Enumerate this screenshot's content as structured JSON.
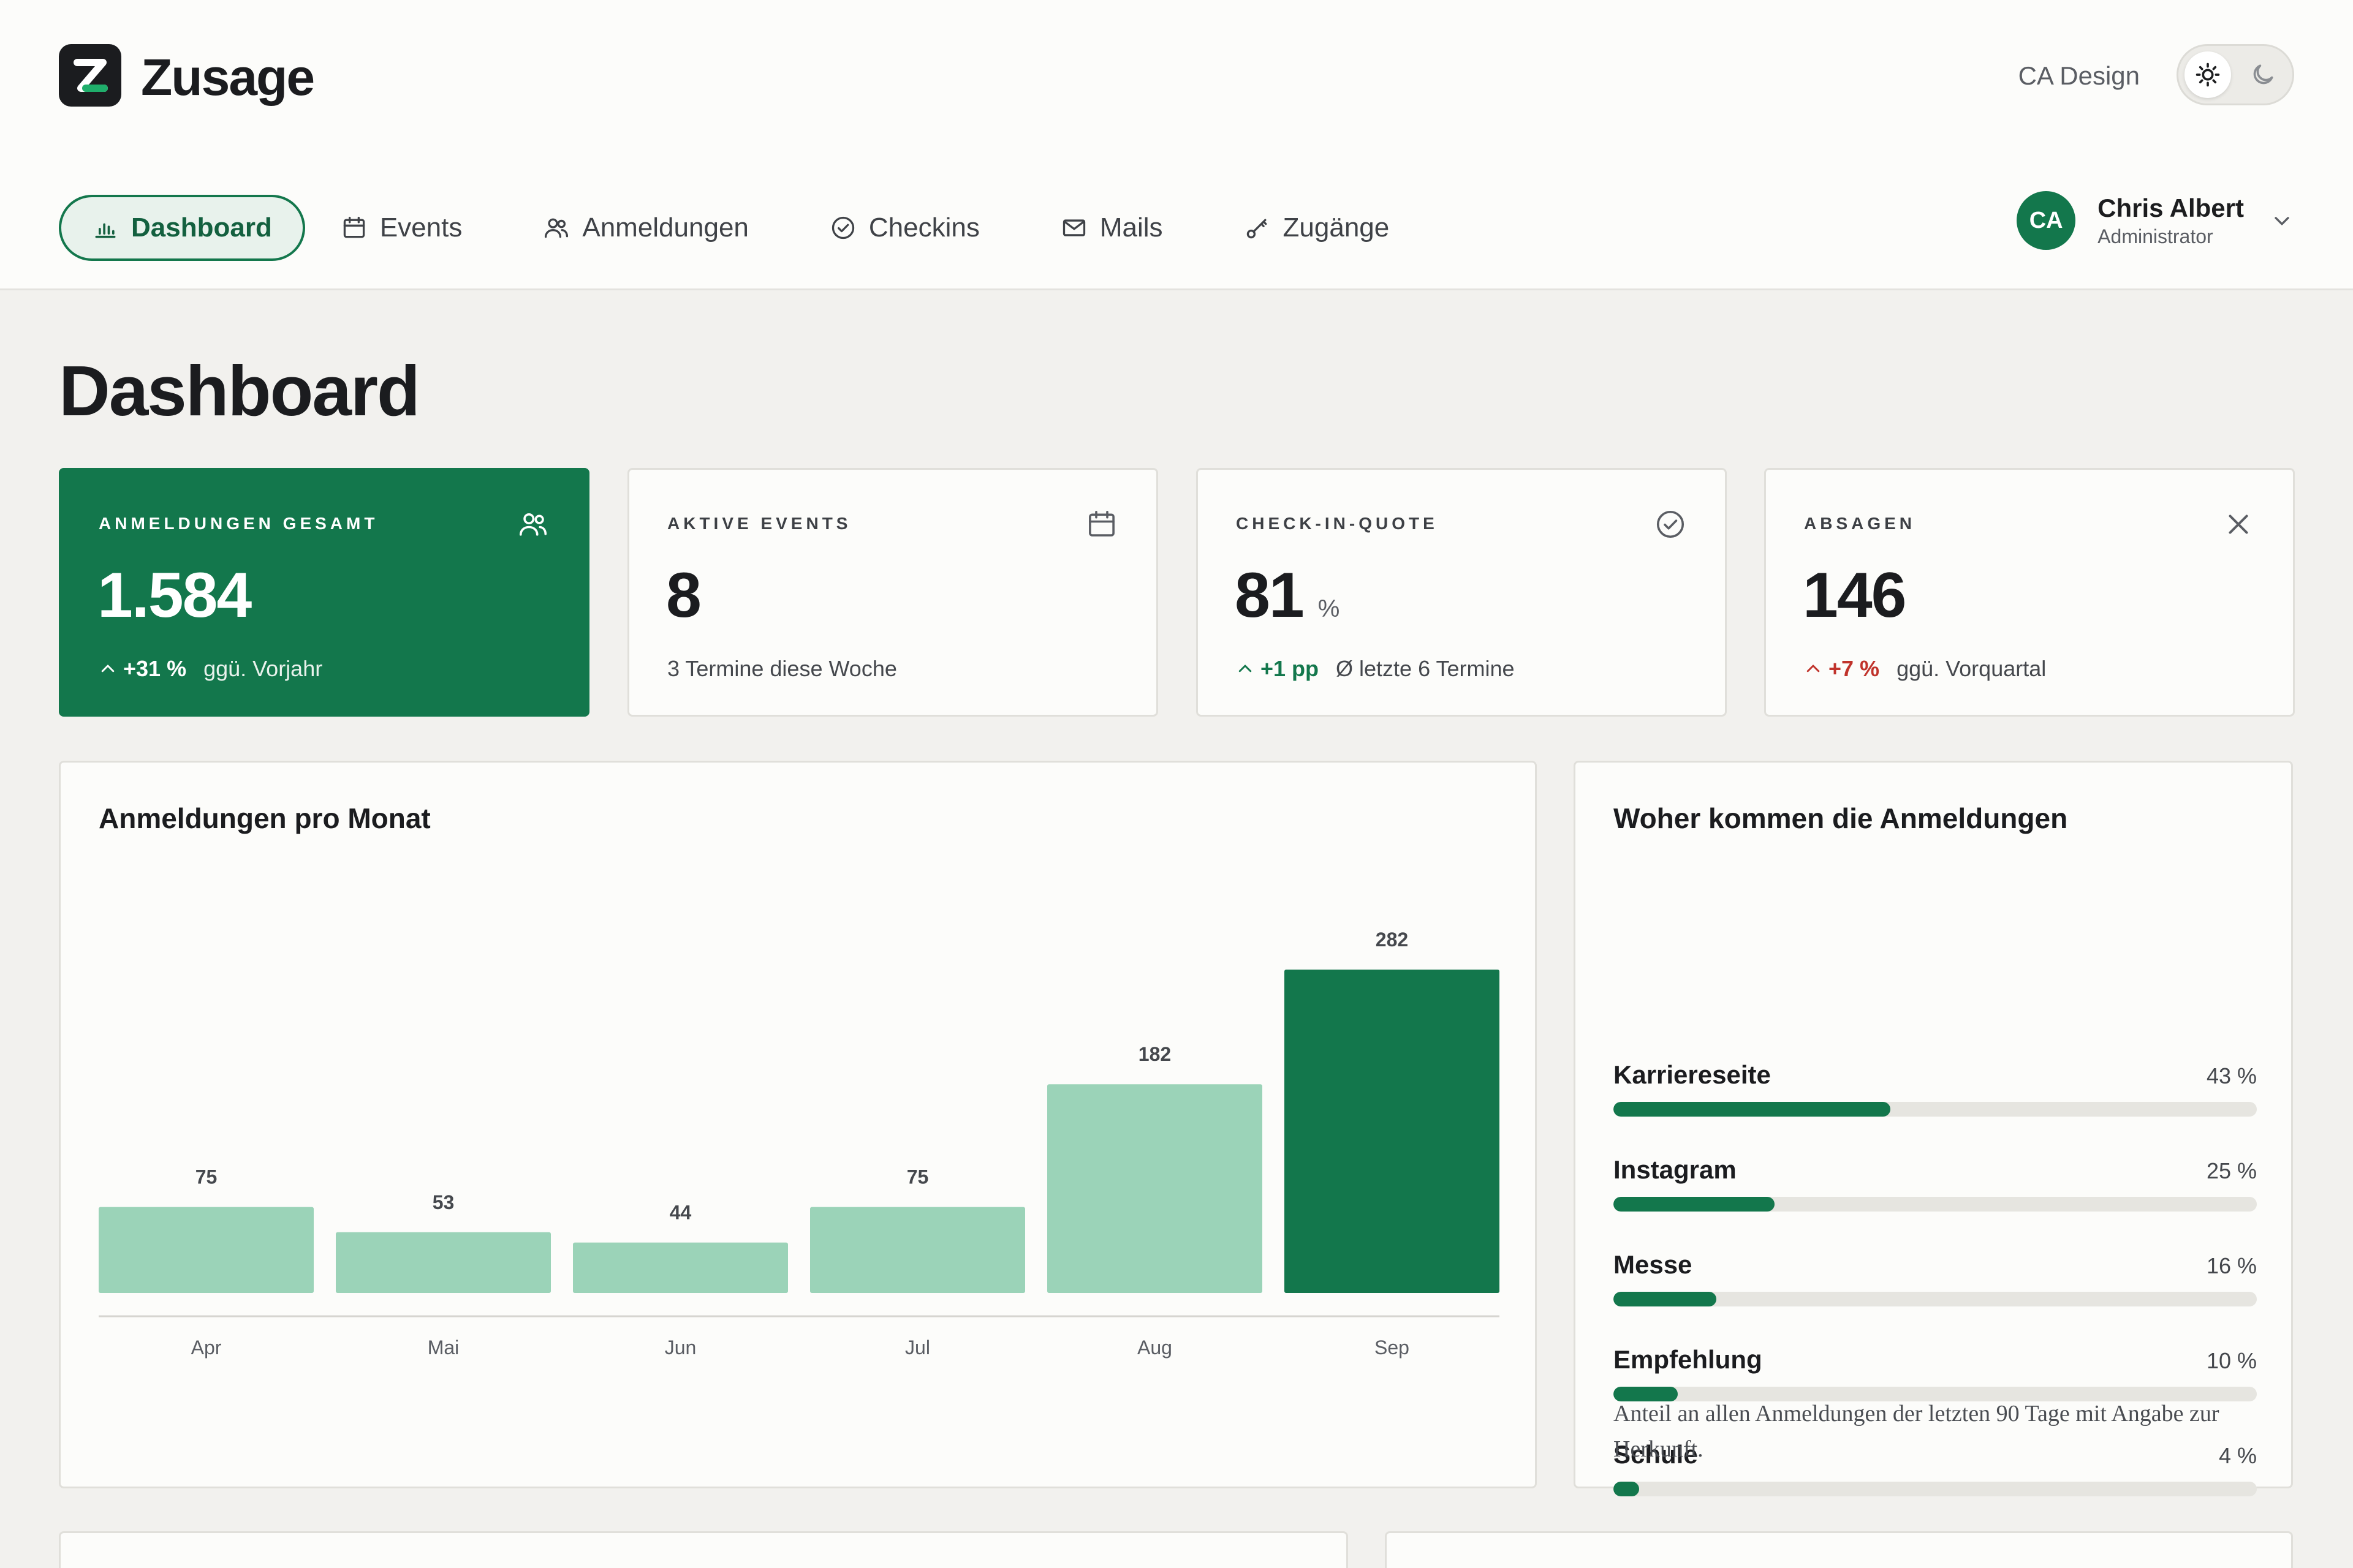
{
  "app": {
    "name": "Zusage",
    "brand_label": "CA Design",
    "theme_options": [
      "light",
      "dark"
    ],
    "active_theme": "light"
  },
  "nav": {
    "items": [
      {
        "label": "Dashboard",
        "icon": "bar-chart-icon",
        "active": true
      },
      {
        "label": "Events",
        "icon": "calendar-icon",
        "active": false
      },
      {
        "label": "Anmeldungen",
        "icon": "users-icon",
        "active": false
      },
      {
        "label": "Checkins",
        "icon": "check-circle-icon",
        "active": false
      },
      {
        "label": "Mails",
        "icon": "mail-icon",
        "active": false
      },
      {
        "label": "Zugänge",
        "icon": "key-icon",
        "active": false
      }
    ]
  },
  "user": {
    "initials": "CA",
    "name": "Chris Albert",
    "role": "Administrator"
  },
  "page": {
    "title": "Dashboard"
  },
  "kpis": [
    {
      "label": "ANMELDUNGEN GESAMT",
      "value": "1.584",
      "unit": "",
      "delta": "+31 %",
      "delta_tone": "positive",
      "sub": "ggü. Vorjahr",
      "icon": "users-icon"
    },
    {
      "label": "AKTIVE EVENTS",
      "value": "8",
      "unit": "",
      "delta": "",
      "delta_tone": "",
      "sub": "3 Termine diese Woche",
      "icon": "calendar-icon"
    },
    {
      "label": "CHECK-IN-QUOTE",
      "value": "81",
      "unit": "%",
      "delta": "+1 pp",
      "delta_tone": "positive",
      "sub": "Ø letzte 6 Termine",
      "icon": "check-circle-icon"
    },
    {
      "label": "ABSAGEN",
      "value": "146",
      "unit": "",
      "delta": "+7 %",
      "delta_tone": "negative",
      "sub": "ggü. Vorquartal",
      "icon": "close-icon"
    }
  ],
  "colors": {
    "accent": "#13774c",
    "accent_light": "#9bd3b8",
    "negative": "#c0332b"
  },
  "monthly_chart": {
    "title": "Anmeldungen pro Monat",
    "chart_data": {
      "type": "bar",
      "categories": [
        "Apr",
        "Mai",
        "Jun",
        "Jul",
        "Aug",
        "Sep"
      ],
      "values": [
        75,
        53,
        44,
        75,
        182,
        282
      ],
      "highlight_index": 5,
      "ylim": [
        0,
        282
      ],
      "grid": false
    }
  },
  "sources": {
    "title": "Woher kommen die Anmeldungen",
    "items": [
      {
        "label": "Karriereseite",
        "percent": 43,
        "percent_label": "43 %"
      },
      {
        "label": "Instagram",
        "percent": 25,
        "percent_label": "25 %"
      },
      {
        "label": "Messe",
        "percent": 16,
        "percent_label": "16 %"
      },
      {
        "label": "Empfehlung",
        "percent": 10,
        "percent_label": "10 %"
      },
      {
        "label": "Schule",
        "percent": 4,
        "percent_label": "4 %"
      }
    ],
    "note": "Anteil an allen Anmeldungen der letzten 90 Tage mit Angabe zur Herkunft."
  }
}
